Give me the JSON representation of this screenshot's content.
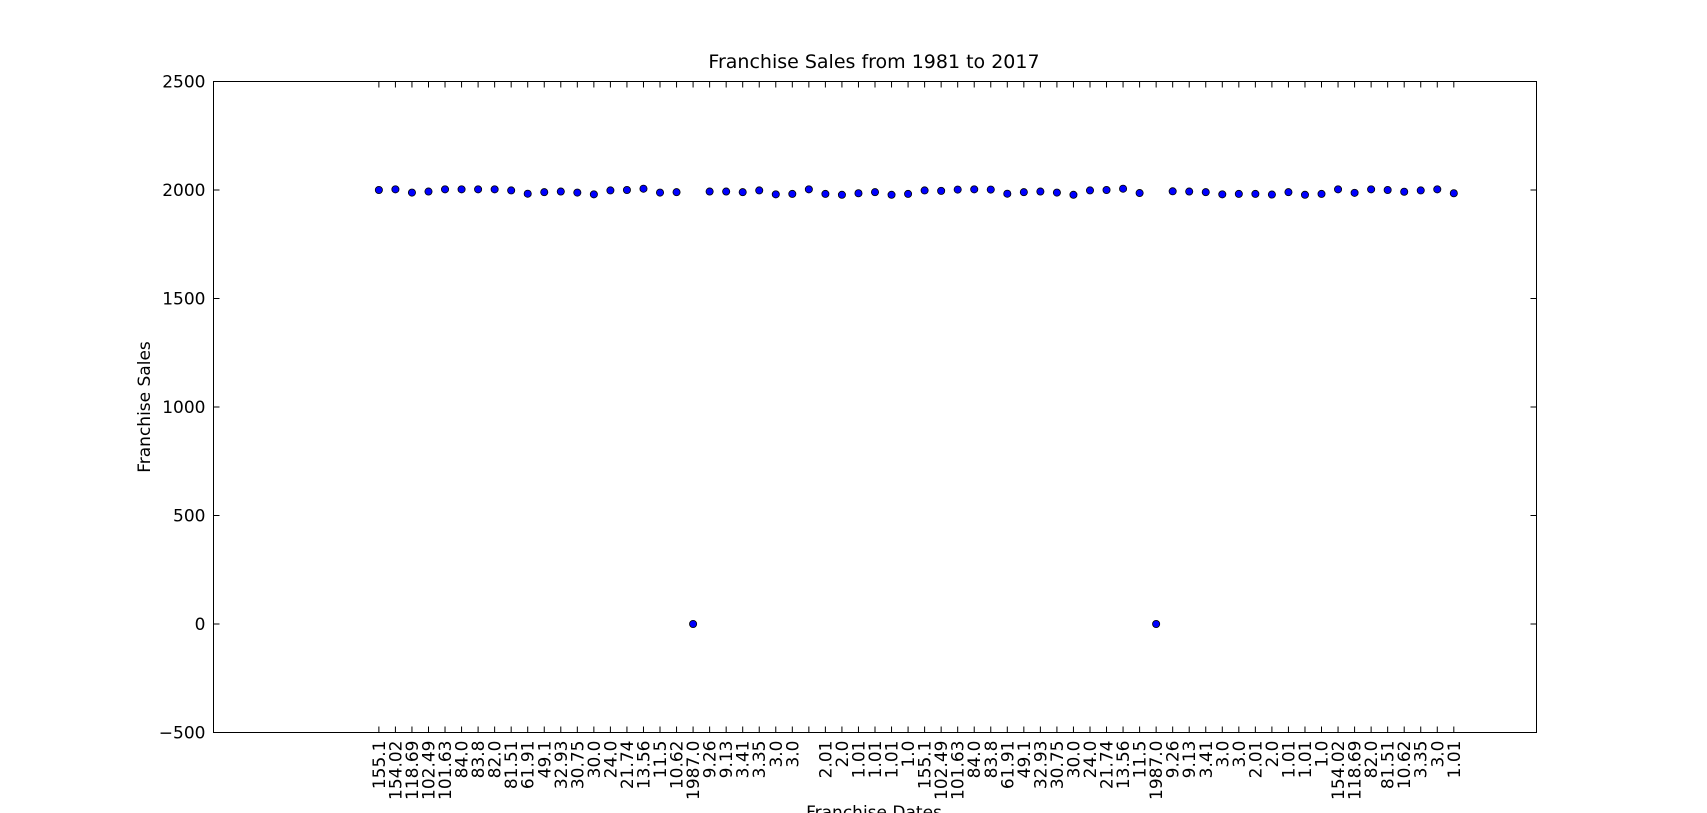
{
  "chart_data": {
    "type": "scatter",
    "title": "Franchise Sales from 1981 to 2017",
    "x_label": "Franchise Dates",
    "y_label": "Franchise Sales",
    "categories": [
      "155.1",
      "154.02",
      "118.69",
      "102.49",
      "101.63",
      "84.0",
      "83.8",
      "82.0",
      "81.51",
      "61.91",
      "49.1",
      "32.93",
      "30.75",
      "30.0",
      "24.0",
      "21.74",
      "13.56",
      "11.5",
      "10.62",
      "1987.0",
      "9.26",
      "9.13",
      "3.41",
      "3.35",
      "3.0",
      "3.0",
      null,
      "2.01",
      "2.0",
      "1.01",
      "1.01",
      "1.01",
      "1.0",
      "155.1",
      "102.49",
      "101.63",
      "84.0",
      "83.8",
      "61.91",
      "49.1",
      "32.93",
      "30.75",
      "30.0",
      "24.0",
      "21.74",
      "13.56",
      "11.5",
      "1987.0",
      "9.26",
      "9.13",
      "3.41",
      "3.0",
      "3.0",
      "2.01",
      "2.0",
      "1.01",
      "1.01",
      "1.0",
      "154.02",
      "118.69",
      "82.0",
      "81.51",
      "10.62",
      "3.35",
      "3.0",
      "1.01"
    ],
    "values": [
      2000,
      2003,
      1988,
      1993,
      2003,
      2003,
      2003,
      2003,
      1998,
      1983,
      1990,
      1993,
      1988,
      1980,
      1998,
      2000,
      2006,
      1988,
      1990,
      0,
      1993,
      1993,
      1990,
      1998,
      1980,
      1982,
      2003,
      1982,
      1978,
      1985,
      1990,
      1978,
      1982,
      1998,
      1996,
      2002,
      2003,
      2002,
      1983,
      1990,
      1993,
      1988,
      1978,
      1998,
      2000,
      2006,
      1986,
      0,
      1994,
      1993,
      1990,
      1980,
      1982,
      1982,
      1979,
      1990,
      1978,
      1982,
      2003,
      1987,
      2003,
      2000,
      1992,
      1998,
      2003,
      1985
    ],
    "color": "#0000ff",
    "ylim": [
      -500,
      2500
    ],
    "yticks": [
      {
        "value": -500,
        "label": "−500"
      },
      0,
      500,
      1000,
      1500,
      2000,
      2500
    ]
  }
}
